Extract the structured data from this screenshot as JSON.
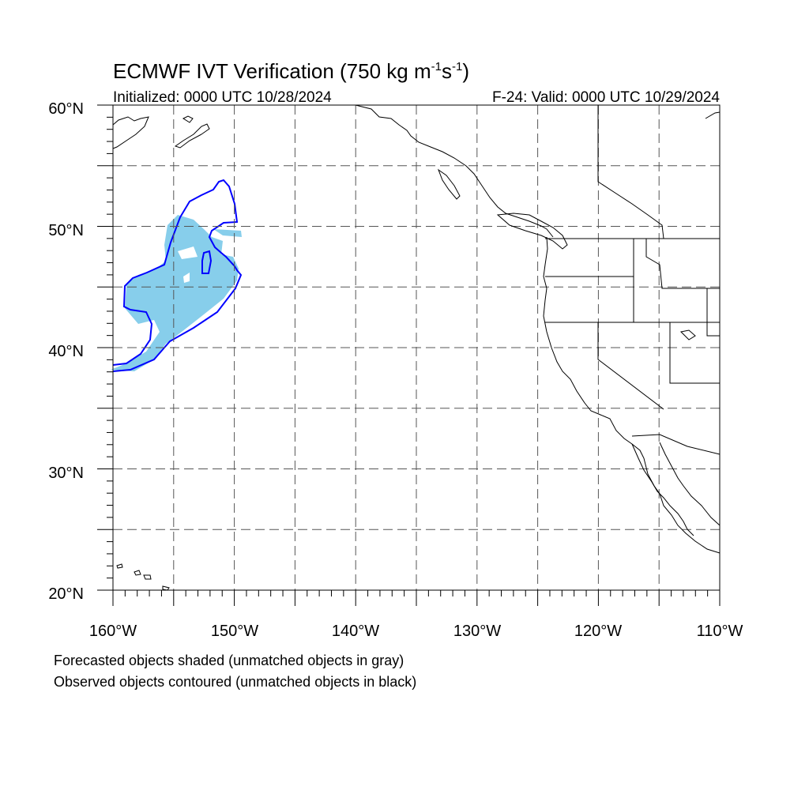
{
  "title": {
    "main": "ECMWF IVT Verification (750 kg m",
    "sup1": "-1",
    "mid": "s",
    "sup2": "-1",
    "end": ")"
  },
  "subtitle_left": "Initialized: 0000 UTC 10/28/2024",
  "subtitle_right": "F-24: Valid: 0000 UTC 10/29/2024",
  "lat_labels": [
    "60°N",
    "50°N",
    "40°N",
    "30°N",
    "20°N"
  ],
  "lon_labels": [
    "160°W",
    "150°W",
    "140°W",
    "130°W",
    "120°W",
    "110°W"
  ],
  "footnotes": [
    "Forecasted objects shaded (unmatched objects in gray)",
    "Observed objects contoured (unmatched objects in black)"
  ],
  "colors": {
    "forecast_fill": "#87ceeb",
    "observed_contour": "#0000ff",
    "grid": "#555555",
    "coast": "#000000"
  },
  "map_extent": {
    "lon": [
      -160,
      -110
    ],
    "lat": [
      20,
      60
    ]
  },
  "grid_spacing_deg": 5,
  "grid_style": "dashed",
  "objects": {
    "forecast_shaded": "matched",
    "observed_contour": "matched"
  }
}
